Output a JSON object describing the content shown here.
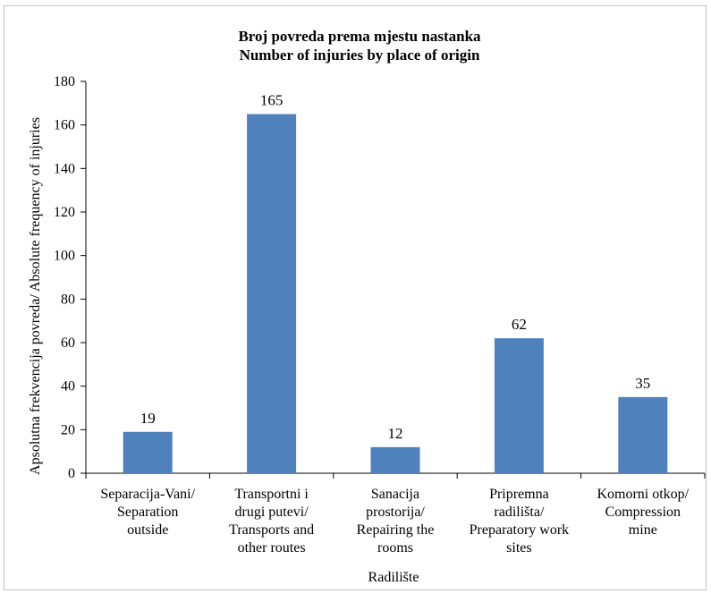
{
  "chart_data": {
    "type": "bar",
    "title": [
      "Broj povreda prema mjestu nastanka",
      "Number of injuries by place of origin"
    ],
    "xlabel": "Radilište",
    "ylabel": "Apsolutna frekvencija povreda/ Absolute frequency of injuries",
    "ylim": [
      0,
      180
    ],
    "yticks": [
      0,
      20,
      40,
      60,
      80,
      100,
      120,
      140,
      160,
      180
    ],
    "categories": [
      [
        "Separacija-Vani/",
        "Separation",
        "outside"
      ],
      [
        "Transportni i",
        "drugi putevi/",
        "Transports and",
        "other routes"
      ],
      [
        "Sanacija",
        "prostorija/",
        "Repairing the",
        "rooms"
      ],
      [
        "Pripremna",
        "radilišta/",
        "Preparatory work",
        "sites"
      ],
      [
        "Komorni otkop/",
        "Compression",
        "mine"
      ]
    ],
    "values": [
      19,
      165,
      12,
      62,
      35
    ],
    "bar_color": "#4f81bd",
    "grid": false,
    "legend": "none"
  }
}
